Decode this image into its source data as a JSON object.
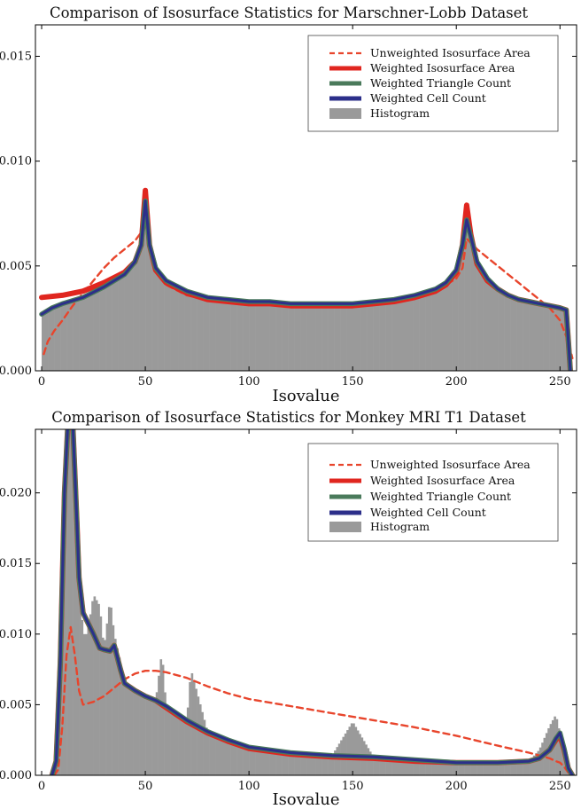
{
  "chart_data": [
    {
      "type": "line",
      "title": "Comparison of Isosurface Statistics for Marschner-Lobb Dataset",
      "xlabel": "Isovalue",
      "ylabel": "",
      "xlim": [
        -3,
        258
      ],
      "ylim": [
        0,
        0.0165
      ],
      "xticks": [
        0,
        50,
        100,
        150,
        200,
        250
      ],
      "yticks": [
        0.0,
        0.005,
        0.01,
        0.015
      ],
      "ytick_labels": [
        "0.000",
        "0.005",
        "0.010",
        "0.015"
      ],
      "legend_position": "top-right",
      "grid": false,
      "series": [
        {
          "name": "Unweighted Isosurface Area",
          "style": "dashed",
          "color": "#e8452c",
          "x": [
            1,
            3,
            6,
            10,
            15,
            20,
            25,
            30,
            35,
            40,
            45,
            48,
            51,
            54,
            60,
            70,
            80,
            90,
            100,
            110,
            120,
            130,
            140,
            150,
            160,
            170,
            180,
            190,
            195,
            200,
            203,
            205,
            207,
            210,
            215,
            220,
            225,
            230,
            235,
            240,
            245,
            250,
            254,
            256
          ],
          "y": [
            0.0008,
            0.0014,
            0.0019,
            0.0024,
            0.0031,
            0.0037,
            0.0043,
            0.0049,
            0.0054,
            0.0058,
            0.0062,
            0.0066,
            0.007,
            0.005,
            0.0041,
            0.0036,
            0.0034,
            0.0033,
            0.0032,
            0.0032,
            0.0031,
            0.0031,
            0.0031,
            0.0031,
            0.0032,
            0.0033,
            0.0035,
            0.0038,
            0.0041,
            0.0044,
            0.0049,
            0.0063,
            0.0061,
            0.0058,
            0.0054,
            0.005,
            0.0046,
            0.0042,
            0.0038,
            0.0034,
            0.003,
            0.0024,
            0.0014,
            0.0006
          ]
        },
        {
          "name": "Weighted Isosurface Area",
          "style": "solid",
          "color": "#e0261f",
          "x": [
            0,
            10,
            20,
            30,
            40,
            45,
            48,
            50,
            52,
            55,
            60,
            70,
            80,
            90,
            100,
            110,
            120,
            130,
            140,
            150,
            160,
            170,
            180,
            190,
            195,
            200,
            203,
            205,
            207,
            210,
            215,
            220,
            225,
            230,
            235,
            240,
            245,
            250,
            253,
            254,
            255
          ],
          "y": [
            0.0035,
            0.0036,
            0.0038,
            0.0042,
            0.0047,
            0.0052,
            0.006,
            0.0086,
            0.006,
            0.0048,
            0.0042,
            0.0037,
            0.0034,
            0.0033,
            0.0032,
            0.0032,
            0.0031,
            0.0031,
            0.0031,
            0.0031,
            0.0032,
            0.0033,
            0.0035,
            0.0038,
            0.0041,
            0.0047,
            0.006,
            0.0079,
            0.0065,
            0.0051,
            0.0043,
            0.0039,
            0.0036,
            0.0034,
            0.0033,
            0.0032,
            0.0031,
            0.003,
            0.0029,
            0.0015,
            0.0
          ]
        },
        {
          "name": "Weighted Triangle Count",
          "style": "solid",
          "color": "#4a7a5b",
          "x": [
            0,
            5,
            10,
            20,
            30,
            40,
            45,
            48,
            50,
            52,
            55,
            60,
            70,
            80,
            90,
            100,
            110,
            120,
            130,
            140,
            150,
            160,
            170,
            180,
            190,
            195,
            200,
            203,
            205,
            207,
            210,
            215,
            220,
            225,
            230,
            235,
            240,
            245,
            250,
            253,
            254,
            255
          ],
          "y": [
            0.0027,
            0.003,
            0.0032,
            0.0035,
            0.004,
            0.0046,
            0.0052,
            0.006,
            0.0081,
            0.006,
            0.0049,
            0.0043,
            0.0038,
            0.0035,
            0.0034,
            0.0033,
            0.0033,
            0.0032,
            0.0032,
            0.0032,
            0.0032,
            0.0033,
            0.0034,
            0.0036,
            0.0039,
            0.0042,
            0.0048,
            0.006,
            0.0072,
            0.0064,
            0.0052,
            0.0044,
            0.0039,
            0.0036,
            0.0034,
            0.0033,
            0.0032,
            0.0031,
            0.003,
            0.0029,
            0.0015,
            0.0
          ]
        },
        {
          "name": "Weighted Cell Count",
          "style": "solid",
          "color": "#2c2f8a",
          "x": [
            0,
            5,
            10,
            20,
            30,
            40,
            45,
            48,
            50,
            52,
            55,
            60,
            70,
            80,
            90,
            100,
            110,
            120,
            130,
            140,
            150,
            160,
            170,
            180,
            190,
            195,
            200,
            203,
            205,
            207,
            210,
            215,
            220,
            225,
            230,
            235,
            240,
            245,
            250,
            253,
            254,
            255
          ],
          "y": [
            0.0027,
            0.003,
            0.0032,
            0.0035,
            0.004,
            0.0046,
            0.0052,
            0.006,
            0.0081,
            0.006,
            0.0049,
            0.0043,
            0.0038,
            0.0035,
            0.0034,
            0.0033,
            0.0033,
            0.0032,
            0.0032,
            0.0032,
            0.0032,
            0.0033,
            0.0034,
            0.0036,
            0.0039,
            0.0042,
            0.0048,
            0.006,
            0.0072,
            0.0064,
            0.0052,
            0.0044,
            0.0039,
            0.0036,
            0.0034,
            0.0033,
            0.0032,
            0.0031,
            0.003,
            0.0029,
            0.0015,
            0.0
          ]
        }
      ],
      "histogram": {
        "name": "Histogram",
        "color": "#9a9a9a",
        "x": [
          0,
          5,
          10,
          20,
          30,
          40,
          45,
          48,
          50,
          52,
          55,
          60,
          70,
          80,
          90,
          100,
          110,
          120,
          130,
          140,
          150,
          160,
          170,
          180,
          190,
          195,
          200,
          203,
          205,
          207,
          210,
          215,
          220,
          225,
          230,
          235,
          240,
          245,
          250,
          253,
          254,
          255
        ],
        "y": [
          0.0027,
          0.003,
          0.0032,
          0.0035,
          0.004,
          0.0046,
          0.0052,
          0.006,
          0.0082,
          0.006,
          0.0049,
          0.0043,
          0.0038,
          0.0035,
          0.0034,
          0.0033,
          0.0033,
          0.0032,
          0.0032,
          0.0032,
          0.0032,
          0.0033,
          0.0034,
          0.0036,
          0.0039,
          0.0042,
          0.005,
          0.006,
          0.0074,
          0.0064,
          0.0052,
          0.0044,
          0.0039,
          0.0036,
          0.0034,
          0.0033,
          0.0032,
          0.0031,
          0.003,
          0.0029,
          0.0015,
          0.0
        ]
      }
    },
    {
      "type": "line",
      "title": "Comparison of Isosurface Statistics for Monkey MRI T1 Dataset",
      "xlabel": "Isovalue",
      "ylabel": "",
      "xlim": [
        -3,
        258
      ],
      "ylim": [
        0,
        0.0245
      ],
      "xticks": [
        0,
        50,
        100,
        150,
        200,
        250
      ],
      "yticks": [
        0.0,
        0.005,
        0.01,
        0.015,
        0.02
      ],
      "ytick_labels": [
        "0.000",
        "0.005",
        "0.010",
        "0.015",
        "0.020"
      ],
      "legend_position": "top-right",
      "grid": false,
      "series": [
        {
          "name": "Unweighted Isosurface Area",
          "style": "dashed",
          "color": "#e8452c",
          "x": [
            6,
            8,
            10,
            12,
            14,
            16,
            18,
            20,
            25,
            30,
            35,
            40,
            45,
            50,
            55,
            60,
            70,
            80,
            90,
            100,
            120,
            140,
            160,
            180,
            200,
            220,
            235,
            240,
            245,
            248,
            250,
            252,
            254,
            256
          ],
          "y": [
            0.0,
            0.0004,
            0.0035,
            0.0085,
            0.0105,
            0.0085,
            0.006,
            0.005,
            0.0052,
            0.0056,
            0.0062,
            0.0068,
            0.0072,
            0.0074,
            0.0074,
            0.0073,
            0.0069,
            0.0063,
            0.0058,
            0.0054,
            0.0049,
            0.0044,
            0.0039,
            0.0034,
            0.0028,
            0.0021,
            0.0016,
            0.0014,
            0.0012,
            0.001,
            0.0009,
            0.0006,
            0.0002,
            0.0
          ]
        },
        {
          "name": "Weighted Isosurface Area",
          "style": "solid",
          "color": "#e0261f",
          "x": [
            5,
            7,
            9,
            11,
            13,
            15,
            17,
            18,
            20,
            25,
            28,
            30,
            33,
            35,
            38,
            40,
            45,
            50,
            55,
            60,
            70,
            80,
            90,
            100,
            120,
            140,
            160,
            180,
            200,
            220,
            235,
            240,
            245,
            248,
            250,
            252,
            254,
            256
          ],
          "y": [
            0.0,
            0.001,
            0.008,
            0.02,
            0.026,
            0.025,
            0.018,
            0.014,
            0.0115,
            0.01,
            0.009,
            0.0089,
            0.0088,
            0.0092,
            0.0075,
            0.0065,
            0.006,
            0.0056,
            0.0053,
            0.0048,
            0.0038,
            0.003,
            0.0024,
            0.0019,
            0.0015,
            0.0013,
            0.0012,
            0.001,
            0.0009,
            0.0009,
            0.001,
            0.0012,
            0.0018,
            0.0025,
            0.0028,
            0.0018,
            0.0005,
            0.0
          ]
        },
        {
          "name": "Weighted Triangle Count",
          "style": "solid",
          "color": "#4a7a5b",
          "x": [
            5,
            7,
            9,
            11,
            13,
            15,
            17,
            18,
            20,
            25,
            28,
            30,
            33,
            35,
            38,
            40,
            45,
            50,
            55,
            60,
            70,
            80,
            90,
            100,
            120,
            140,
            160,
            180,
            200,
            220,
            235,
            240,
            245,
            248,
            250,
            252,
            254,
            256
          ],
          "y": [
            0.0,
            0.001,
            0.008,
            0.02,
            0.026,
            0.025,
            0.018,
            0.014,
            0.0115,
            0.01,
            0.009,
            0.0089,
            0.0088,
            0.0092,
            0.0075,
            0.0065,
            0.006,
            0.0056,
            0.0053,
            0.0049,
            0.0039,
            0.0031,
            0.0025,
            0.002,
            0.0016,
            0.0014,
            0.0013,
            0.0011,
            0.0009,
            0.0009,
            0.001,
            0.0012,
            0.0018,
            0.0026,
            0.003,
            0.0019,
            0.0005,
            0.0
          ]
        },
        {
          "name": "Weighted Cell Count",
          "style": "solid",
          "color": "#2c2f8a",
          "x": [
            5,
            7,
            9,
            11,
            13,
            15,
            17,
            18,
            20,
            25,
            28,
            30,
            33,
            35,
            38,
            40,
            45,
            50,
            55,
            60,
            70,
            80,
            90,
            100,
            120,
            140,
            160,
            180,
            200,
            220,
            235,
            240,
            245,
            248,
            250,
            252,
            254,
            256
          ],
          "y": [
            0.0,
            0.001,
            0.008,
            0.02,
            0.026,
            0.025,
            0.018,
            0.014,
            0.0115,
            0.01,
            0.009,
            0.0089,
            0.0088,
            0.0092,
            0.0075,
            0.0065,
            0.006,
            0.0056,
            0.0053,
            0.0049,
            0.0039,
            0.0031,
            0.0025,
            0.002,
            0.0016,
            0.0014,
            0.0013,
            0.0011,
            0.0009,
            0.0009,
            0.001,
            0.0012,
            0.0018,
            0.0026,
            0.003,
            0.0019,
            0.0005,
            0.0
          ]
        }
      ],
      "histogram": {
        "name": "Histogram",
        "color": "#9a9a9a",
        "x": [
          5,
          7,
          9,
          11,
          13,
          15,
          17,
          18,
          20,
          22,
          25,
          28,
          30,
          33,
          35,
          38,
          40,
          45,
          50,
          55,
          58,
          60,
          70,
          72,
          80,
          90,
          100,
          110,
          120,
          130,
          140,
          150,
          160,
          180,
          200,
          220,
          235,
          240,
          245,
          248,
          250,
          252,
          254,
          256
        ],
        "y": [
          0.0,
          0.001,
          0.008,
          0.02,
          0.028,
          0.027,
          0.018,
          0.014,
          0.01,
          0.01,
          0.0128,
          0.012,
          0.009,
          0.0125,
          0.01,
          0.008,
          0.0065,
          0.006,
          0.0056,
          0.0053,
          0.0088,
          0.0049,
          0.0039,
          0.0075,
          0.0031,
          0.0025,
          0.002,
          0.0018,
          0.0016,
          0.0015,
          0.0014,
          0.0038,
          0.0013,
          0.0011,
          0.0009,
          0.0009,
          0.001,
          0.0018,
          0.0035,
          0.0043,
          0.003,
          0.0019,
          0.0005,
          0.0
        ]
      }
    }
  ]
}
